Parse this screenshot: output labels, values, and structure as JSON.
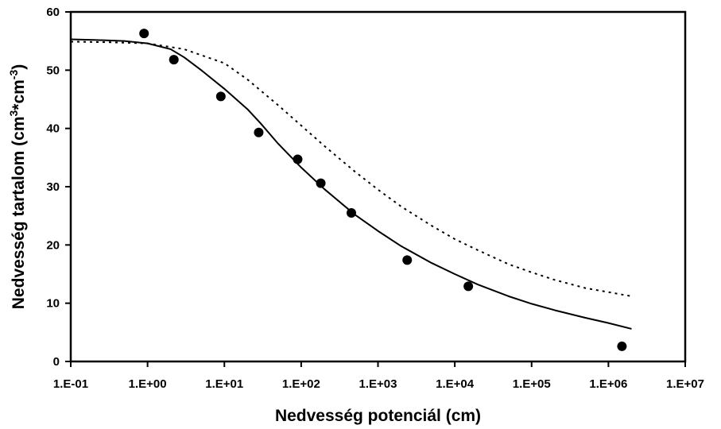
{
  "chart_data": {
    "type": "scatter",
    "title": "",
    "xlabel": "Nedvesség potenciál (cm)",
    "ylabel": {
      "pre": "Nedvesség tartalom (cm",
      "sup1": "3",
      "mid": "*cm",
      "sup2": "-3",
      "post": ")"
    },
    "x_scale": "log",
    "xlim": [
      0.1,
      10000000
    ],
    "ylim": [
      0,
      60
    ],
    "x_ticks": [
      0.1,
      1,
      10,
      100,
      1000,
      10000,
      100000,
      1000000,
      10000000
    ],
    "x_tick_labels": [
      "1.E-01",
      "1.E+00",
      "1.E+01",
      "1.E+02",
      "1.E+03",
      "1.E+04",
      "1.E+05",
      "1.E+06",
      "1.E+07"
    ],
    "y_ticks": [
      0,
      10,
      20,
      30,
      40,
      50,
      60
    ],
    "y_tick_labels": [
      "0",
      "10",
      "20",
      "30",
      "40",
      "50",
      "60"
    ],
    "grid": false,
    "legend": "none",
    "series": [
      {
        "kind": "points",
        "marker": "filled-circle",
        "color": "#000000",
        "x": [
          0.9,
          2.2,
          9,
          28,
          90,
          180,
          450,
          2400,
          15000,
          1500000
        ],
        "y": [
          56.3,
          51.8,
          45.5,
          39.3,
          34.7,
          30.6,
          25.5,
          17.4,
          12.9,
          2.6
        ]
      },
      {
        "kind": "line",
        "style": "solid",
        "color": "#000000",
        "x": [
          0.1,
          0.2,
          0.5,
          1,
          2,
          3,
          5,
          10,
          20,
          30,
          50,
          100,
          200,
          500,
          1000,
          2000,
          5000,
          10000,
          20000,
          50000,
          100000,
          200000,
          500000,
          1000000,
          2000000
        ],
        "y": [
          55.3,
          55.2,
          55.0,
          54.6,
          53.6,
          52.2,
          50.0,
          46.8,
          43.3,
          40.8,
          37.4,
          33.3,
          29.6,
          25.2,
          22.4,
          19.8,
          16.9,
          15.0,
          13.2,
          11.2,
          9.9,
          8.8,
          7.5,
          6.6,
          5.6
        ]
      },
      {
        "kind": "line",
        "style": "dotted",
        "color": "#000000",
        "x": [
          0.1,
          0.3,
          1,
          3,
          10,
          20,
          50,
          100,
          200,
          500,
          1000,
          2000,
          5000,
          10000,
          20000,
          50000,
          100000,
          200000,
          500000,
          1000000,
          2000000
        ],
        "y": [
          54.9,
          54.8,
          54.6,
          53.6,
          51.2,
          48.4,
          44.0,
          40.5,
          37.0,
          32.6,
          29.5,
          26.6,
          23.3,
          21.0,
          19.1,
          16.7,
          15.3,
          14.0,
          12.6,
          11.9,
          11.2
        ]
      }
    ]
  }
}
